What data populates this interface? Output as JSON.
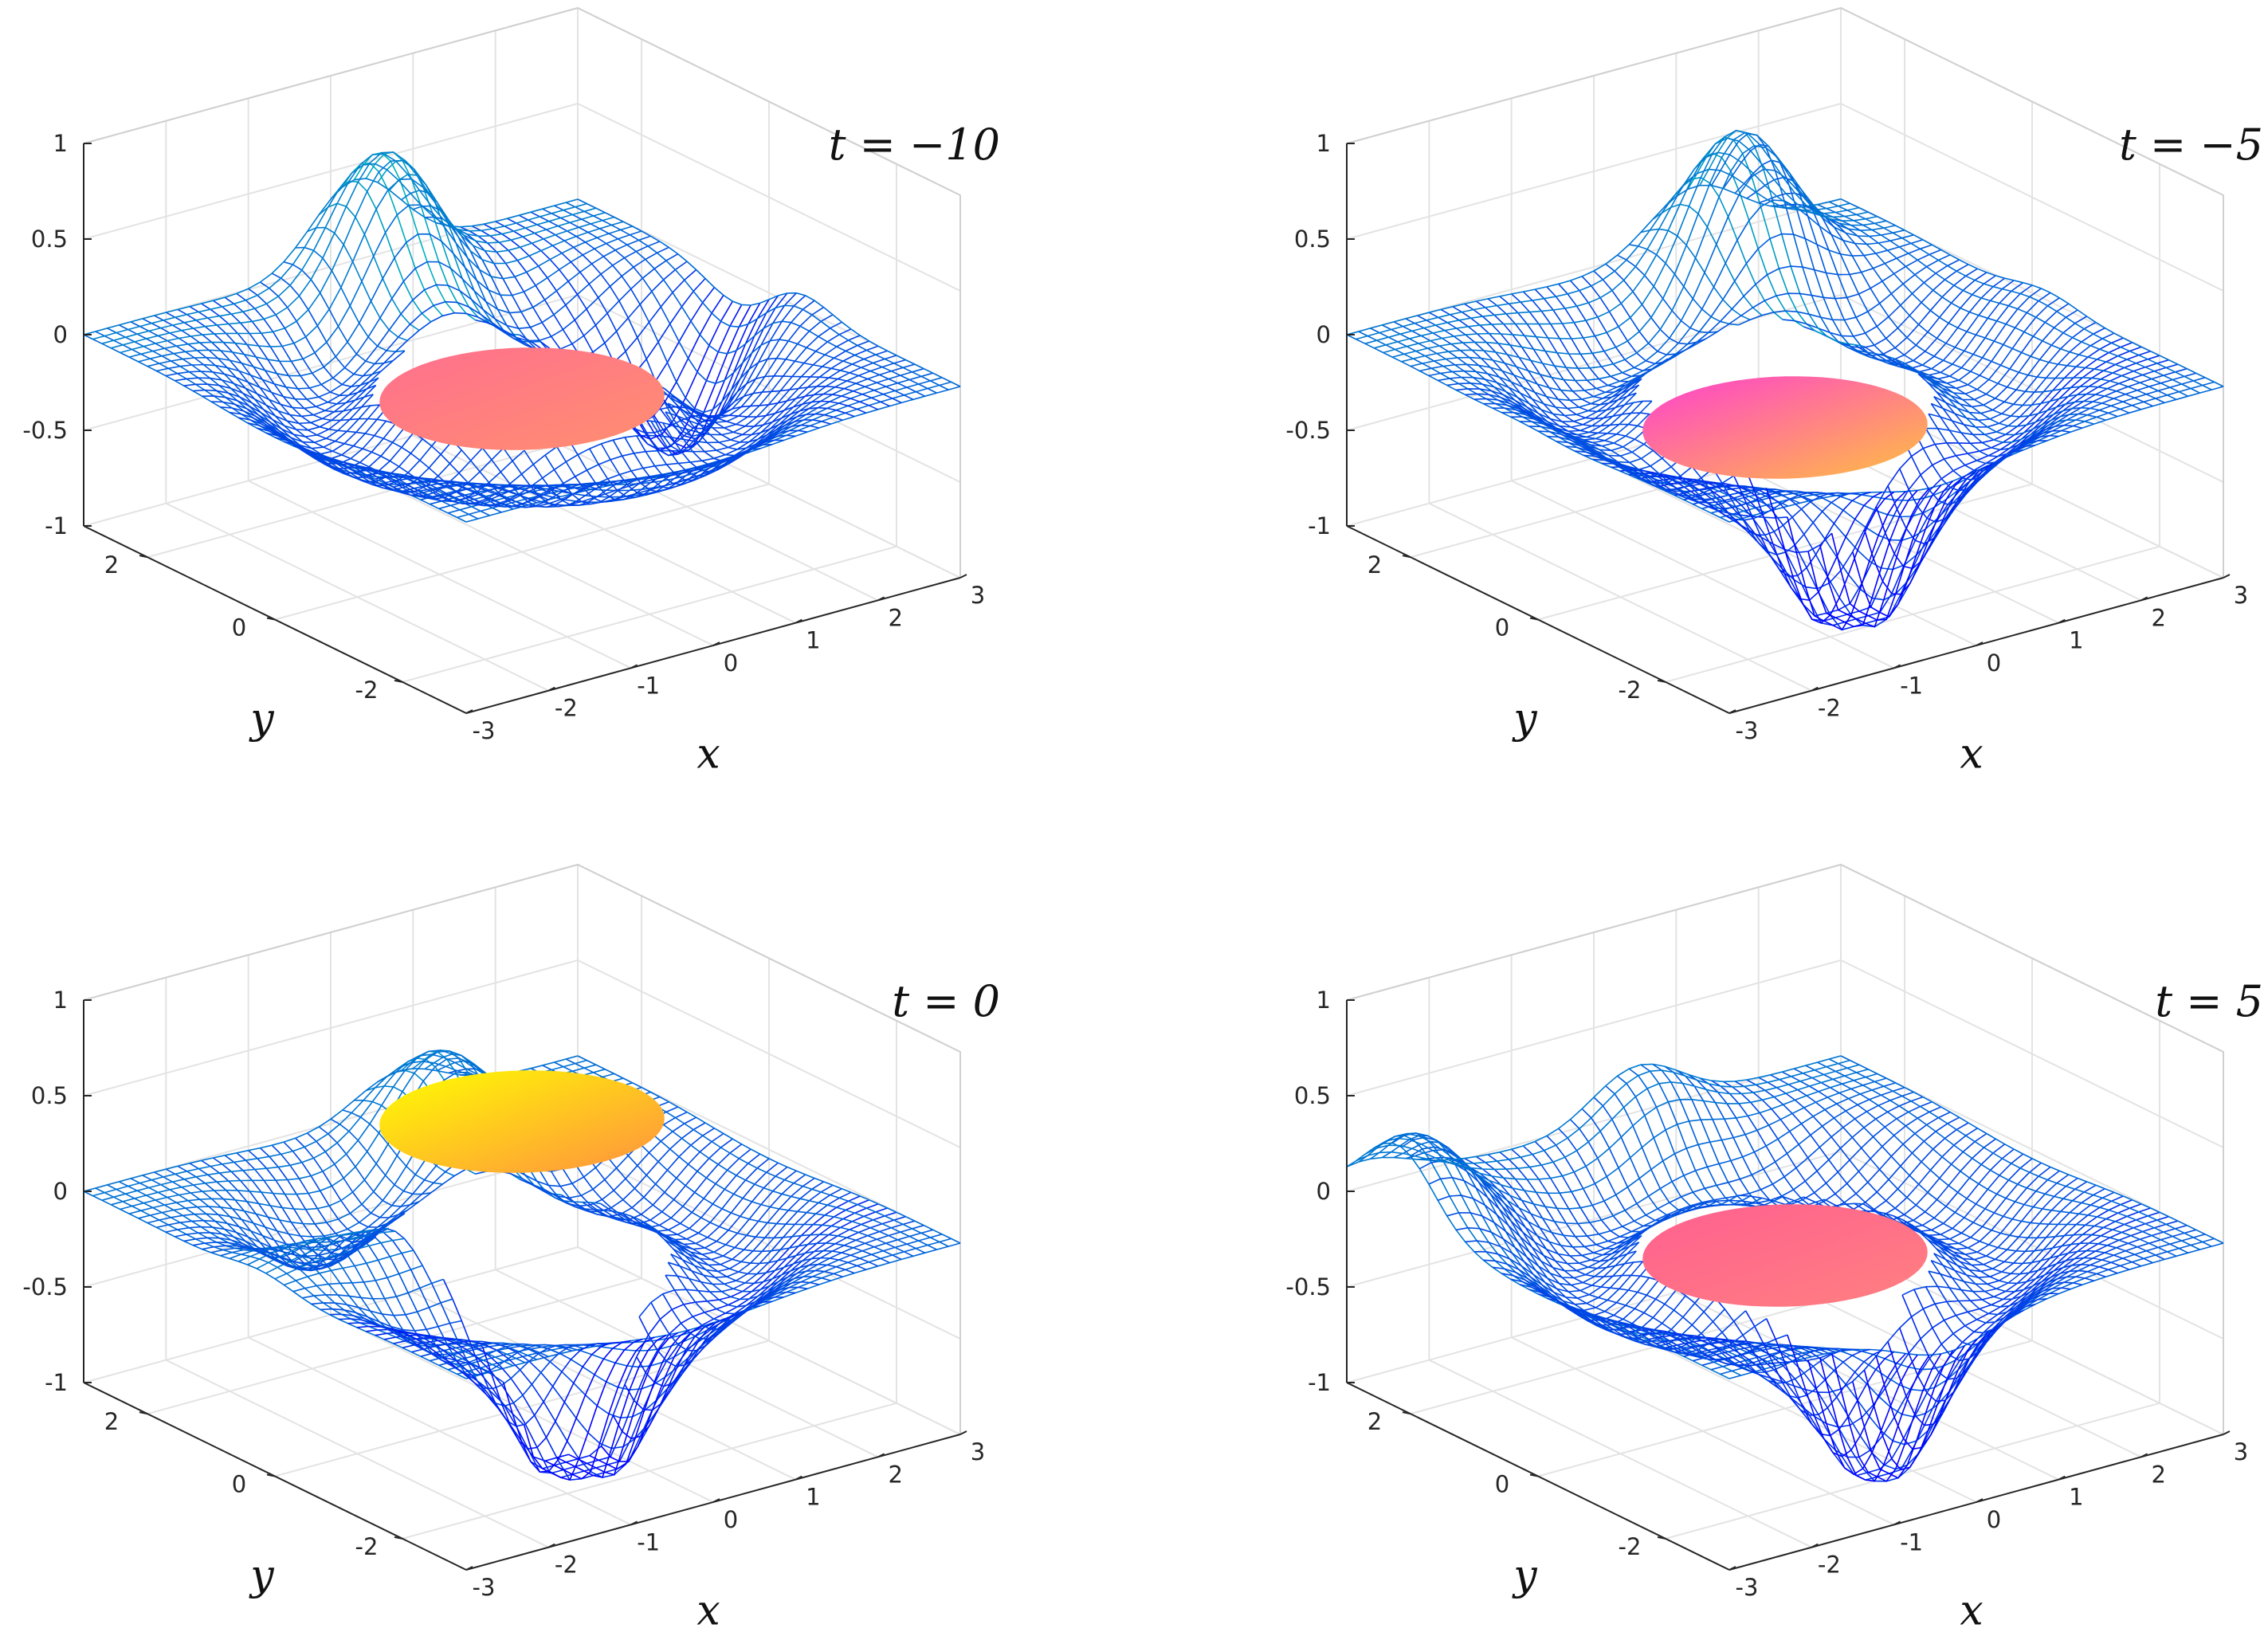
{
  "chart_data": [
    {
      "type": "surface",
      "title": "t = −10",
      "title_var": "t",
      "title_value": "−10",
      "xlabel": "x",
      "ylabel": "y",
      "xlim": [
        -3,
        3
      ],
      "ylim": [
        -3,
        3
      ],
      "zlim": [
        -1,
        1
      ],
      "x_ticks": [
        "-3",
        "-2",
        "-1",
        "0",
        "1",
        "2",
        "3"
      ],
      "y_ticks": [
        "-2",
        "0",
        "2"
      ],
      "z_ticks": [
        "-1",
        "-0.5",
        "0",
        "0.5",
        "1"
      ],
      "grid": true,
      "mesh_colormap": [
        "#0000ff",
        "#00ffa0"
      ],
      "disk_colors": [
        "#ff6f8f",
        "#ff8f6f"
      ],
      "disk_height": -0.2,
      "mesh_features": [
        {
          "x": 0.3,
          "y": 2.4,
          "z": 0.85
        },
        {
          "x": 2.8,
          "y": -0.3,
          "z": 0.2
        },
        {
          "x": 2.2,
          "y": 0.3,
          "z": -0.5
        }
      ]
    },
    {
      "type": "surface",
      "title": "t = −5",
      "title_var": "t",
      "title_value": "−5",
      "xlabel": "x",
      "ylabel": "y",
      "xlim": [
        -3,
        3
      ],
      "ylim": [
        -3,
        3
      ],
      "zlim": [
        -1,
        1
      ],
      "x_ticks": [
        "-3",
        "-2",
        "-1",
        "0",
        "1",
        "2",
        "3"
      ],
      "y_ticks": [
        "-2",
        "0",
        "2"
      ],
      "z_ticks": [
        "-1",
        "-0.5",
        "0",
        "0.5",
        "1"
      ],
      "grid": true,
      "mesh_colormap": [
        "#0000ff",
        "#00ffa0"
      ],
      "disk_colors": [
        "#ff40d0",
        "#ffc040"
      ],
      "disk_height": -0.35,
      "mesh_features": [
        {
          "x": 1.2,
          "y": 2.2,
          "z": 0.85
        },
        {
          "x": -2.2,
          "y": 0.2,
          "z": 0.1
        },
        {
          "x": 2.8,
          "y": -0.2,
          "z": 0.1
        },
        {
          "x": -0.6,
          "y": -1.8,
          "z": -0.8
        }
      ]
    },
    {
      "type": "surface",
      "title": "t = 0",
      "title_var": "t",
      "title_value": "0",
      "xlabel": "x",
      "ylabel": "y",
      "xlim": [
        -3,
        3
      ],
      "ylim": [
        -3,
        3
      ],
      "zlim": [
        -1,
        1
      ],
      "x_ticks": [
        "-3",
        "-2",
        "-1",
        "0",
        "1",
        "2",
        "3"
      ],
      "y_ticks": [
        "-2",
        "0",
        "2"
      ],
      "z_ticks": [
        "-1",
        "-0.5",
        "0",
        "0.5",
        "1"
      ],
      "grid": true,
      "mesh_colormap": [
        "#0000ff",
        "#00ffa0"
      ],
      "disk_colors": [
        "#ffff00",
        "#ff9040"
      ],
      "disk_height": 0.5,
      "mesh_features": [
        {
          "x": -2.0,
          "y": 0.2,
          "z": 0.45
        },
        {
          "x": 0.8,
          "y": 2.2,
          "z": 0.6
        },
        {
          "x": -0.5,
          "y": -1.5,
          "z": -0.95
        }
      ]
    },
    {
      "type": "surface",
      "title": "t = 5",
      "title_var": "t",
      "title_value": "5",
      "xlabel": "x",
      "ylabel": "y",
      "xlim": [
        -3,
        3
      ],
      "ylim": [
        -3,
        3
      ],
      "zlim": [
        -1,
        1
      ],
      "x_ticks": [
        "-3",
        "-2",
        "-1",
        "0",
        "1",
        "2",
        "3"
      ],
      "y_ticks": [
        "-2",
        "0",
        "2"
      ],
      "z_ticks": [
        "-1",
        "-0.5",
        "0",
        "0.5",
        "1"
      ],
      "grid": true,
      "mesh_colormap": [
        "#0000ff",
        "#00ffa0"
      ],
      "disk_colors": [
        "#ff6090",
        "#ff8080"
      ],
      "disk_height": -0.2,
      "mesh_features": [
        {
          "x": -2.8,
          "y": 2.2,
          "z": 0.4
        },
        {
          "x": 0.5,
          "y": 2.8,
          "z": 0.3
        },
        {
          "x": -0.4,
          "y": -2.0,
          "z": -0.7
        }
      ]
    }
  ]
}
